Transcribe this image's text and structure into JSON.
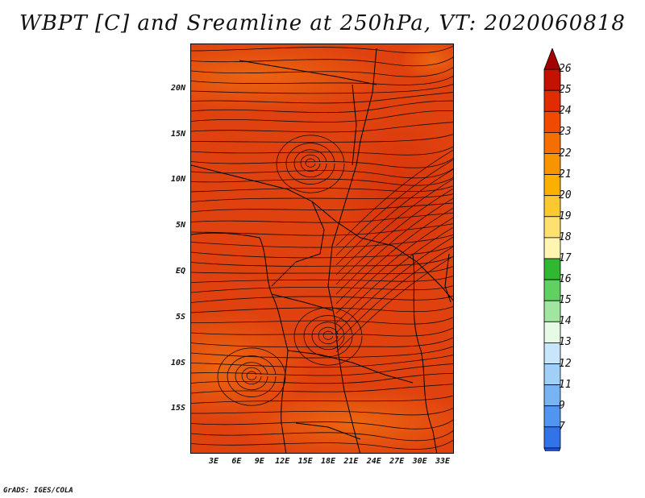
{
  "title": "WBPT [C] and Sreamline at 250hPa, VT: 2020060818",
  "credit": "GrADS: IGES/COLA",
  "y_labels": [
    "20N",
    "15N",
    "10N",
    "5N",
    "EQ",
    "5S",
    "10S",
    "15S"
  ],
  "x_labels": [
    "3E",
    "6E",
    "9E",
    "12E",
    "15E",
    "18E",
    "21E",
    "24E",
    "27E",
    "30E",
    "33E"
  ],
  "colorbar": {
    "labels": [
      "26",
      "25",
      "24",
      "23",
      "22",
      "21",
      "20",
      "19",
      "18",
      "17",
      "16",
      "15",
      "14",
      "13",
      "12",
      "11",
      "9",
      "7"
    ],
    "colors": [
      "#a50000",
      "#c41200",
      "#e02c00",
      "#f04a00",
      "#f56e00",
      "#f89400",
      "#fbb000",
      "#fcc830",
      "#fde070",
      "#fef5b0",
      "#30b830",
      "#60d060",
      "#a0e6a0",
      "#e6fae6",
      "#c8e6fa",
      "#a0d0f8",
      "#78b4f4",
      "#5096f0",
      "#3274e6",
      "#2050d0"
    ]
  }
}
